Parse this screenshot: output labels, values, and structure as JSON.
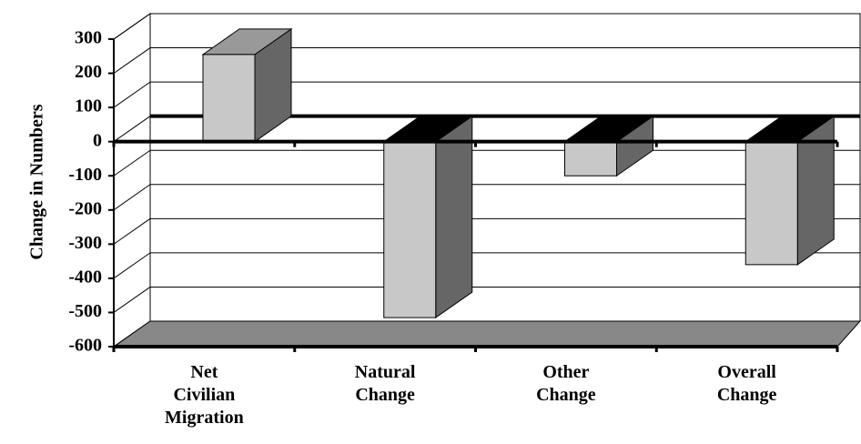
{
  "chart_data": {
    "type": "bar3d",
    "y_label": "Change in Numbers",
    "categories": [
      "Net Civilian Migration",
      "Natural Change",
      "Other Change",
      "Overall Change"
    ],
    "values": [
      255,
      -515,
      -100,
      -360
    ],
    "color": "#c8c8c8",
    "ylim": [
      -600,
      300
    ],
    "yticks": [
      300,
      200,
      100,
      0,
      -100,
      -200,
      -300,
      -400,
      -500,
      -600
    ],
    "grid": true
  }
}
